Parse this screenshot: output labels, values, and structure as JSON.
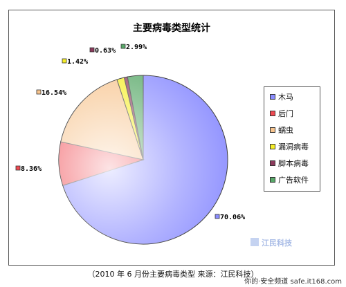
{
  "chart_data": {
    "type": "pie",
    "title": "主要病毒类型统计",
    "slices": [
      {
        "name": "木马",
        "value": 70.06,
        "label": "70.06%",
        "color": "#8a8cff"
      },
      {
        "name": "后门",
        "value": 8.36,
        "label": "8.36%",
        "color": "#f04a52"
      },
      {
        "name": "蠕虫",
        "value": 16.54,
        "label": "16.54%",
        "color": "#f7c48e"
      },
      {
        "name": "漏洞病毒",
        "value": 1.42,
        "label": "1.42%",
        "color": "#f6ee28"
      },
      {
        "name": "脚本病毒",
        "value": 0.63,
        "label": "0.63%",
        "color": "#8c3a5c"
      },
      {
        "name": "广告软件",
        "value": 2.99,
        "label": "2.99%",
        "color": "#58a868"
      }
    ],
    "legend_position": "right"
  },
  "watermark": {
    "text": "江民科技"
  },
  "caption": "（2010 年 6 月份主要病毒类型  来源：江民科技）",
  "source_tag": "你的·安全频道  safe.it168.com"
}
